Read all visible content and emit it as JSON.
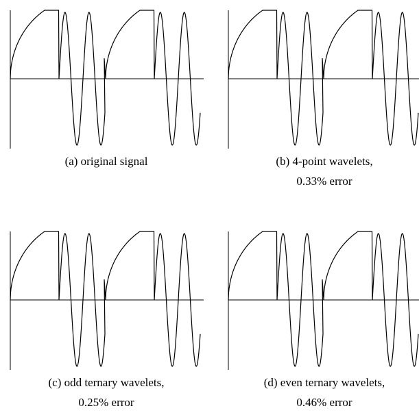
{
  "panels": [
    {
      "caption": [
        "(a) original signal"
      ]
    },
    {
      "caption": [
        "(b) 4-point wavelets,",
        "0.33% error"
      ]
    },
    {
      "caption": [
        "(c) odd ternary wavelets,",
        "0.25% error"
      ]
    },
    {
      "caption": [
        "(d) even ternary wavelets,",
        "0.46% error"
      ]
    }
  ]
}
